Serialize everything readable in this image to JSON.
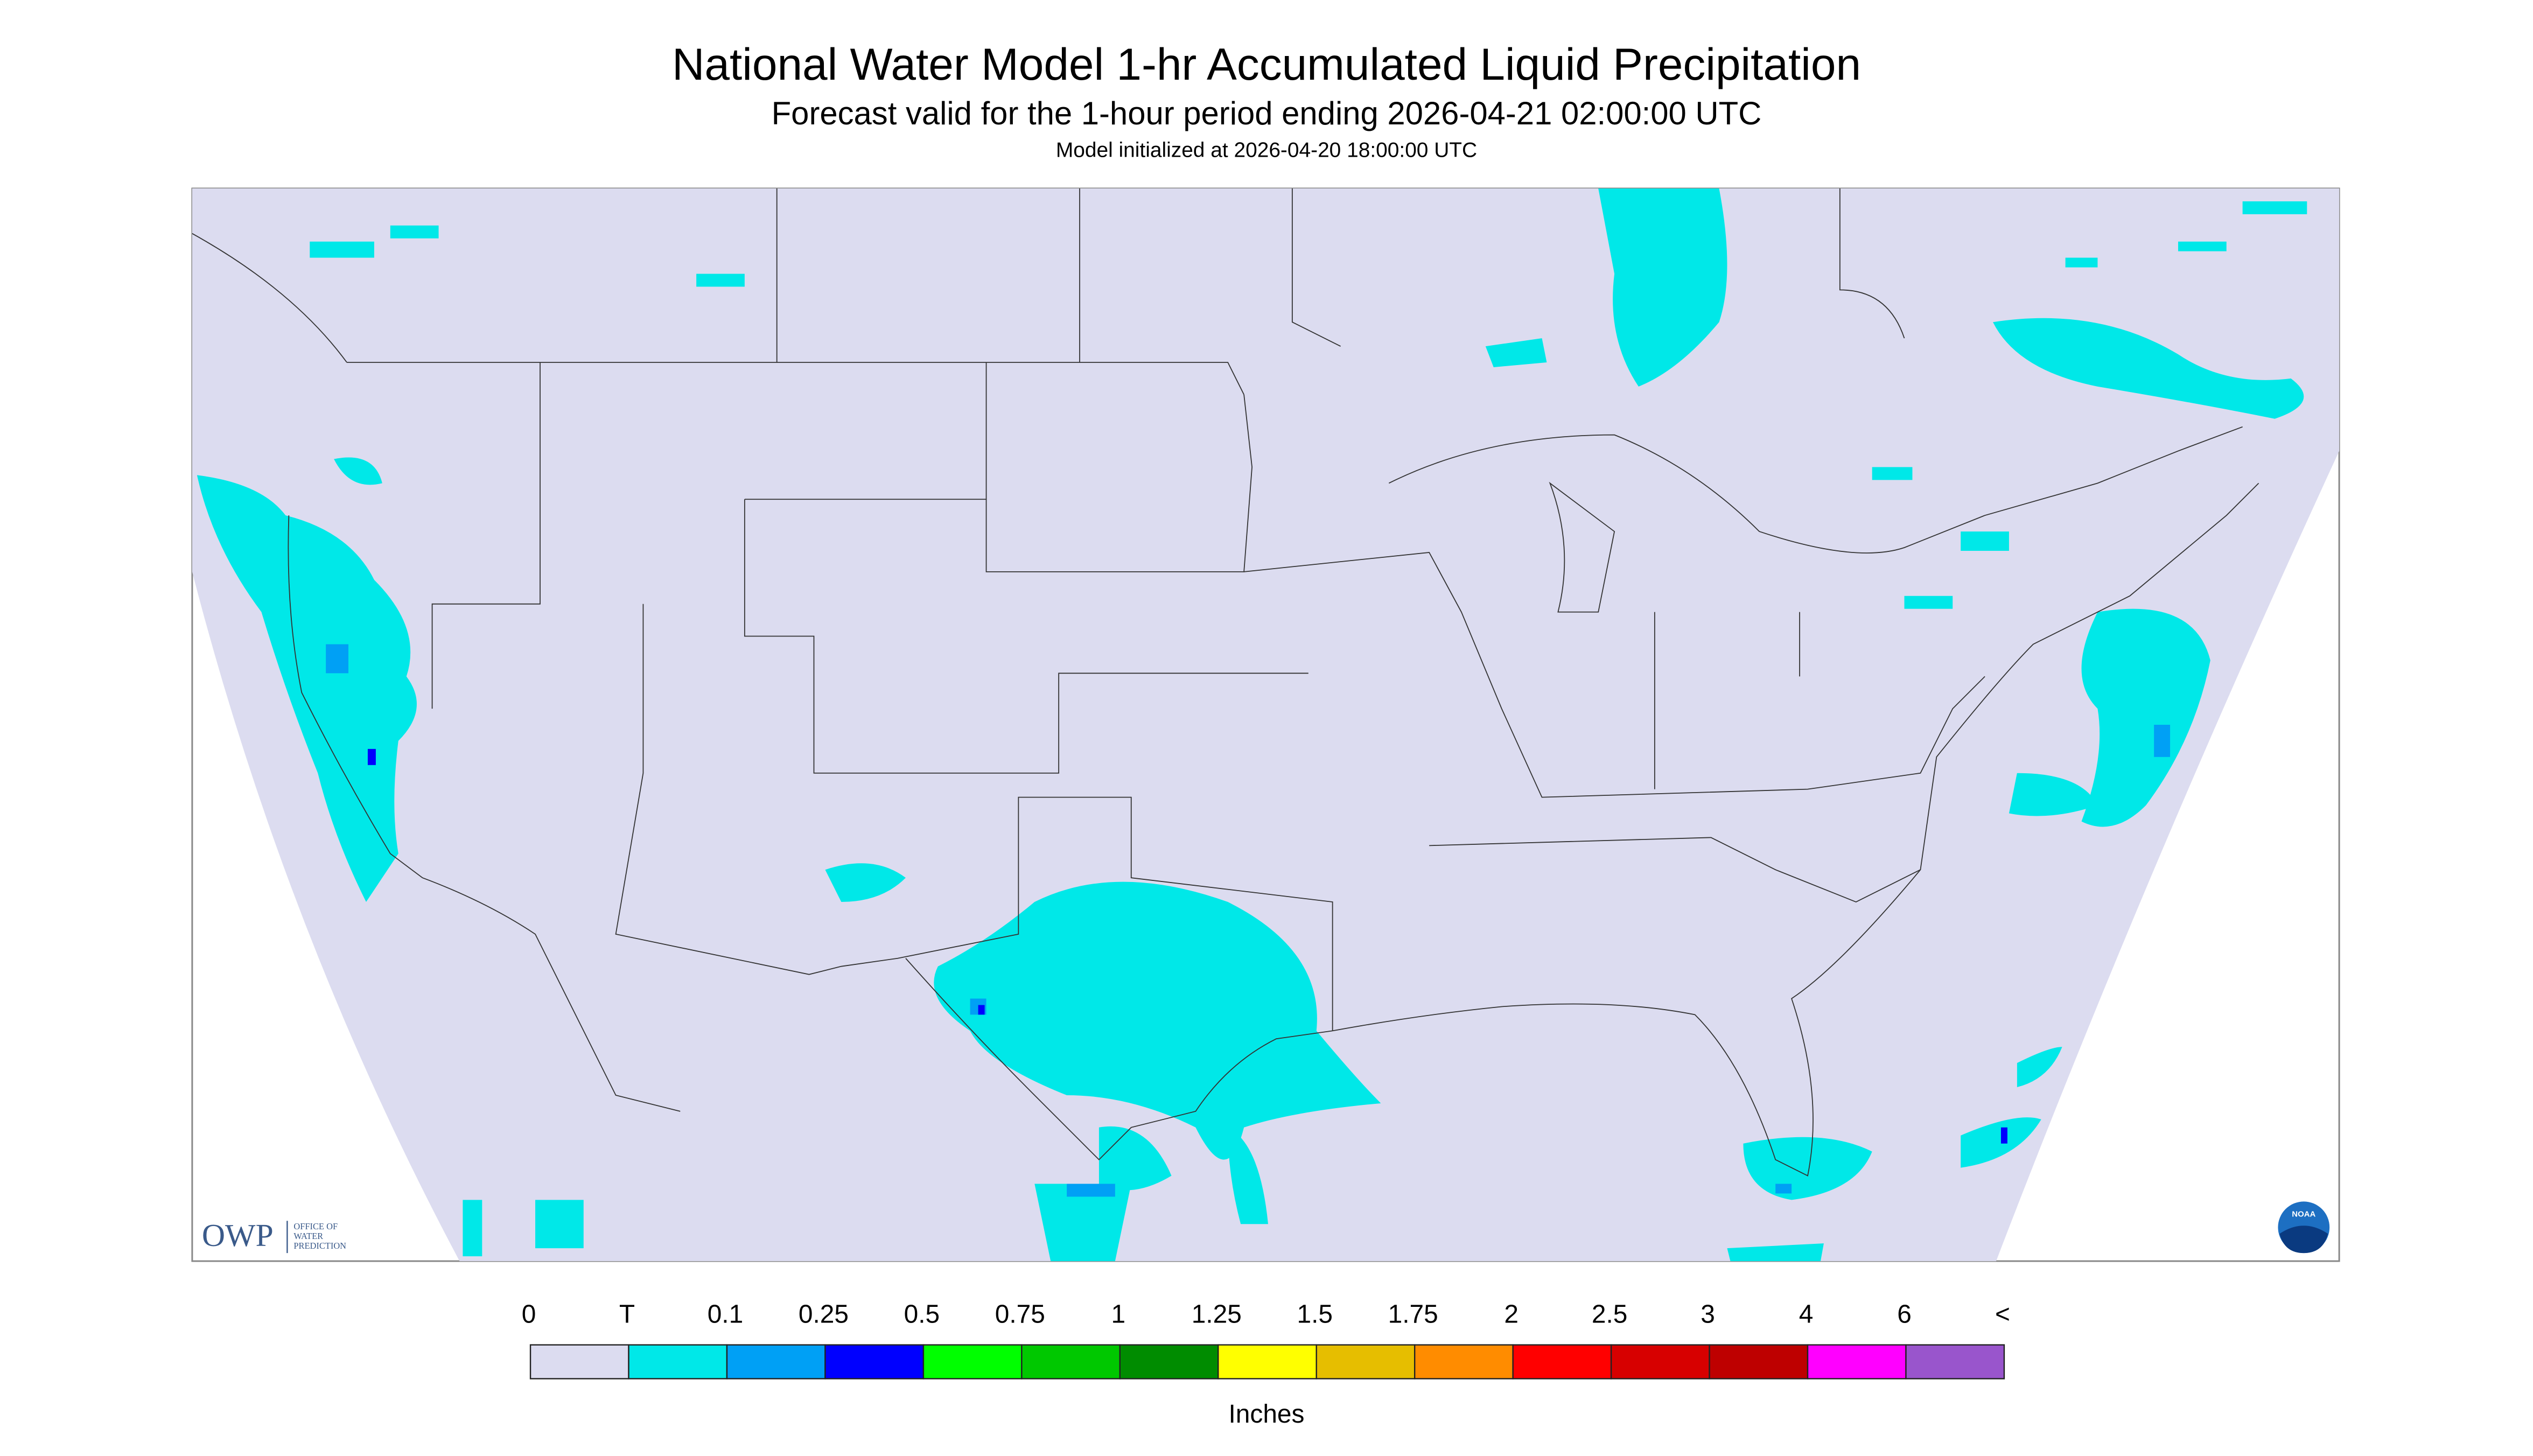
{
  "header": {
    "title": "National Water Model 1-hr Accumulated Liquid Precipitation",
    "subtitle": "Forecast valid for the 1-hour period ending 2026-04-21 02:00:00 UTC",
    "init": "Model initialized at 2026-04-20 18:00:00 UTC"
  },
  "logos": {
    "owp": {
      "abbr": "OWP",
      "lines": [
        "OFFICE OF",
        "WATER",
        "PREDICTION"
      ]
    },
    "noaa": "NOAA"
  },
  "legend": {
    "labels": [
      "0",
      "T",
      "0.1",
      "0.25",
      "0.5",
      "0.75",
      "1",
      "1.25",
      "1.5",
      "1.75",
      "2",
      "2.5",
      "3",
      "4",
      "6",
      "<"
    ],
    "colors": [
      "#dcdcf0",
      "#00e8e8",
      "#00a0f5",
      "#0000ff",
      "#00ff00",
      "#00c800",
      "#008c00",
      "#ffff00",
      "#e6be00",
      "#ff8c00",
      "#ff0000",
      "#d70000",
      "#be0000",
      "#ff00ff",
      "#9955cc"
    ],
    "unit": "Inches"
  }
}
